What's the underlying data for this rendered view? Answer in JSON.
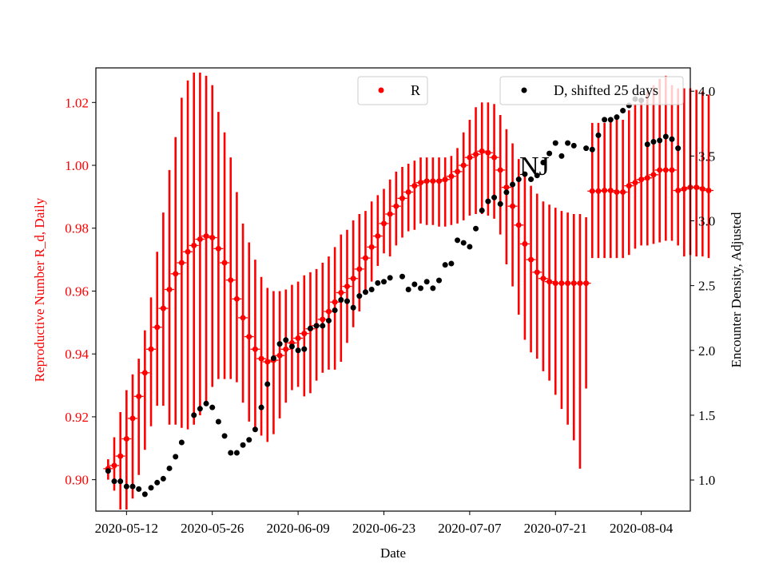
{
  "chart_data": {
    "type": "scatter",
    "annotation": "NJ",
    "xlabel": "Date",
    "ylabel_left": "Reproductive Number R_d, Daily",
    "ylabel_right": "Encounter Density, Adjusted",
    "grid": false,
    "x_ticks": [
      "2020-05-12",
      "2020-05-26",
      "2020-06-09",
      "2020-06-23",
      "2020-07-07",
      "2020-07-21",
      "2020-08-04"
    ],
    "x_range": [
      "2020-05-07",
      "2020-08-12"
    ],
    "y_left_ticks": [
      "0.90",
      "0.92",
      "0.94",
      "0.96",
      "0.98",
      "1.00",
      "1.02"
    ],
    "y_left_range": [
      0.89,
      1.031
    ],
    "y_right_ticks": [
      "1.0",
      "1.5",
      "2.0",
      "2.5",
      "3.0",
      "3.5",
      "4.0"
    ],
    "y_right_range": [
      0.76,
      4.18
    ],
    "legend": [
      {
        "label": "R",
        "color": "#ff0000",
        "placement": "upper-center"
      },
      {
        "label": "D, shifted 25 days",
        "color": "#000000",
        "placement": "upper-right"
      }
    ],
    "colors": {
      "R": "#ff0000",
      "D": "#000000"
    },
    "series": [
      {
        "name": "R",
        "axis": "left",
        "start_date": "2020-05-09",
        "values": [
          0.9035,
          0.9045,
          0.9075,
          0.913,
          0.9195,
          0.9265,
          0.934,
          0.9415,
          0.9485,
          0.9545,
          0.9605,
          0.9655,
          0.969,
          0.9725,
          0.9745,
          0.9765,
          0.9775,
          0.977,
          0.9735,
          0.969,
          0.9635,
          0.9575,
          0.9515,
          0.9455,
          0.9415,
          0.9385,
          0.9375,
          0.938,
          0.9395,
          0.9415,
          0.9435,
          0.945,
          0.9465,
          0.948,
          0.949,
          0.951,
          0.9535,
          0.9565,
          0.9595,
          0.9615,
          0.964,
          0.967,
          0.9705,
          0.974,
          0.9775,
          0.9815,
          0.9845,
          0.987,
          0.9895,
          0.9915,
          0.9935,
          0.9945,
          0.995,
          0.995,
          0.995,
          0.9955,
          0.9965,
          0.998,
          1.0,
          1.0025,
          1.0035,
          1.0045,
          1.004,
          1.0025,
          0.9985,
          0.993,
          0.987,
          0.981,
          0.975,
          0.97,
          0.966,
          0.964,
          0.963,
          0.9625,
          0.9625,
          0.9625,
          0.9625,
          0.9625,
          0.9625,
          0.9918,
          0.9918,
          0.992,
          0.992,
          0.9915,
          0.9915,
          0.9935,
          0.9945,
          0.9955,
          0.996,
          0.997,
          0.9985,
          0.9985,
          0.9985,
          0.992,
          0.9925,
          0.993,
          0.993,
          0.9925,
          0.992
        ],
        "lower": [
          0.9,
          0.8965,
          0.8905,
          0.8905,
          0.894,
          0.9015,
          0.9095,
          0.917,
          0.9235,
          0.9235,
          0.9175,
          0.9175,
          0.9165,
          0.916,
          0.9175,
          0.9205,
          0.9245,
          0.9295,
          0.932,
          0.932,
          0.932,
          0.931,
          0.9245,
          0.9185,
          0.9155,
          0.914,
          0.912,
          0.9145,
          0.9195,
          0.9245,
          0.9285,
          0.9295,
          0.9265,
          0.9275,
          0.9315,
          0.934,
          0.935,
          0.935,
          0.9375,
          0.9435,
          0.9485,
          0.9535,
          0.959,
          0.963,
          0.968,
          0.972,
          0.971,
          0.9745,
          0.977,
          0.979,
          0.9795,
          0.9815,
          0.981,
          0.981,
          0.9805,
          0.9805,
          0.981,
          0.9815,
          0.9825,
          0.984,
          0.9845,
          0.9845,
          0.984,
          0.983,
          0.978,
          0.9685,
          0.9615,
          0.9525,
          0.9445,
          0.9405,
          0.9385,
          0.9345,
          0.9315,
          0.927,
          0.9225,
          0.9175,
          0.9125,
          0.9035,
          0.929,
          0.9705,
          0.9705,
          0.9705,
          0.9705,
          0.9705,
          0.9705,
          0.9715,
          0.9735,
          0.9745,
          0.9745,
          0.975,
          0.9755,
          0.976,
          0.976,
          0.9745,
          0.971,
          0.9715,
          0.971,
          0.971,
          0.9705
        ],
        "upper": [
          0.9065,
          0.9135,
          0.9215,
          0.9285,
          0.9335,
          0.9385,
          0.9475,
          0.958,
          0.9725,
          0.985,
          0.9985,
          1.009,
          1.0215,
          1.027,
          1.0295,
          1.0295,
          1.0285,
          1.0255,
          1.017,
          1.0105,
          1.0025,
          0.9915,
          0.9815,
          0.9755,
          0.97,
          0.9645,
          0.961,
          0.96,
          0.96,
          0.9605,
          0.962,
          0.963,
          0.965,
          0.966,
          0.967,
          0.969,
          0.971,
          0.974,
          0.978,
          0.9795,
          0.9825,
          0.9845,
          0.9855,
          0.9885,
          0.9905,
          0.9925,
          0.9955,
          0.998,
          0.9995,
          1.0005,
          1.0015,
          1.0025,
          1.0025,
          1.0025,
          1.0025,
          1.0025,
          1.003,
          1.0055,
          1.0105,
          1.0145,
          1.0185,
          1.02,
          1.02,
          1.0195,
          1.016,
          1.0115,
          1.007,
          1.002,
          0.9965,
          0.9935,
          0.991,
          0.9885,
          0.9875,
          0.9865,
          0.9855,
          0.985,
          0.9845,
          0.9845,
          0.9835,
          1.0135,
          1.0135,
          1.0135,
          1.014,
          1.0145,
          1.0145,
          1.0175,
          1.0195,
          1.0215,
          1.0235,
          1.0255,
          1.0275,
          1.0285,
          1.0255,
          1.0245,
          1.0245,
          1.0245,
          1.024,
          1.0235,
          1.0225
        ]
      },
      {
        "name": "D, shifted 25 days",
        "axis": "right",
        "points": [
          [
            "2020-05-09",
            1.07
          ],
          [
            "2020-05-10",
            0.99
          ],
          [
            "2020-05-11",
            0.99
          ],
          [
            "2020-05-12",
            0.95
          ],
          [
            "2020-05-13",
            0.95
          ],
          [
            "2020-05-14",
            0.93
          ],
          [
            "2020-05-15",
            0.89
          ],
          [
            "2020-05-16",
            0.94
          ],
          [
            "2020-05-17",
            0.98
          ],
          [
            "2020-05-18",
            1.01
          ],
          [
            "2020-05-19",
            1.09
          ],
          [
            "2020-05-20",
            1.18
          ],
          [
            "2020-05-21",
            1.29
          ],
          [
            "2020-05-23",
            1.5
          ],
          [
            "2020-05-24",
            1.55
          ],
          [
            "2020-05-25",
            1.59
          ],
          [
            "2020-05-26",
            1.56
          ],
          [
            "2020-05-27",
            1.45
          ],
          [
            "2020-05-28",
            1.34
          ],
          [
            "2020-05-29",
            1.21
          ],
          [
            "2020-05-30",
            1.21
          ],
          [
            "2020-05-31",
            1.27
          ],
          [
            "2020-06-01",
            1.31
          ],
          [
            "2020-06-02",
            1.39
          ],
          [
            "2020-06-03",
            1.56
          ],
          [
            "2020-06-04",
            1.74
          ],
          [
            "2020-06-05",
            1.94
          ],
          [
            "2020-06-06",
            2.05
          ],
          [
            "2020-06-07",
            2.08
          ],
          [
            "2020-06-08",
            2.03
          ],
          [
            "2020-06-09",
            2.0
          ],
          [
            "2020-06-10",
            2.01
          ],
          [
            "2020-06-11",
            2.17
          ],
          [
            "2020-06-12",
            2.19
          ],
          [
            "2020-06-13",
            2.19
          ],
          [
            "2020-06-14",
            2.23
          ],
          [
            "2020-06-15",
            2.31
          ],
          [
            "2020-06-16",
            2.39
          ],
          [
            "2020-06-17",
            2.38
          ],
          [
            "2020-06-18",
            2.33
          ],
          [
            "2020-06-19",
            2.42
          ],
          [
            "2020-06-20",
            2.45
          ],
          [
            "2020-06-21",
            2.47
          ],
          [
            "2020-06-22",
            2.52
          ],
          [
            "2020-06-23",
            2.53
          ],
          [
            "2020-06-24",
            2.56
          ],
          [
            "2020-06-26",
            2.57
          ],
          [
            "2020-06-27",
            2.47
          ],
          [
            "2020-06-28",
            2.51
          ],
          [
            "2020-06-29",
            2.48
          ],
          [
            "2020-06-30",
            2.53
          ],
          [
            "2020-07-01",
            2.48
          ],
          [
            "2020-07-02",
            2.54
          ],
          [
            "2020-07-03",
            2.66
          ],
          [
            "2020-07-04",
            2.67
          ],
          [
            "2020-07-05",
            2.85
          ],
          [
            "2020-07-06",
            2.83
          ],
          [
            "2020-07-07",
            2.8
          ],
          [
            "2020-07-08",
            2.94
          ],
          [
            "2020-07-09",
            3.08
          ],
          [
            "2020-07-10",
            3.15
          ],
          [
            "2020-07-11",
            3.18
          ],
          [
            "2020-07-12",
            3.13
          ],
          [
            "2020-07-13",
            3.22
          ],
          [
            "2020-07-14",
            3.28
          ],
          [
            "2020-07-15",
            3.32
          ],
          [
            "2020-07-16",
            3.36
          ],
          [
            "2020-07-17",
            3.32
          ],
          [
            "2020-07-18",
            3.35
          ],
          [
            "2020-07-19",
            3.45
          ],
          [
            "2020-07-20",
            3.52
          ],
          [
            "2020-07-21",
            3.6
          ],
          [
            "2020-07-22",
            3.5
          ],
          [
            "2020-07-23",
            3.6
          ],
          [
            "2020-07-24",
            3.58
          ],
          [
            "2020-07-26",
            3.56
          ],
          [
            "2020-07-27",
            3.55
          ],
          [
            "2020-07-28",
            3.66
          ],
          [
            "2020-07-29",
            3.78
          ],
          [
            "2020-07-30",
            3.78
          ],
          [
            "2020-07-31",
            3.8
          ],
          [
            "2020-08-01",
            3.85
          ],
          [
            "2020-08-02",
            3.89
          ],
          [
            "2020-08-03",
            3.94
          ],
          [
            "2020-08-04",
            3.93
          ],
          [
            "2020-08-05",
            3.59
          ],
          [
            "2020-08-06",
            3.61
          ],
          [
            "2020-08-07",
            3.62
          ],
          [
            "2020-08-08",
            3.65
          ],
          [
            "2020-08-09",
            3.63
          ],
          [
            "2020-08-10",
            3.56
          ]
        ]
      }
    ]
  }
}
